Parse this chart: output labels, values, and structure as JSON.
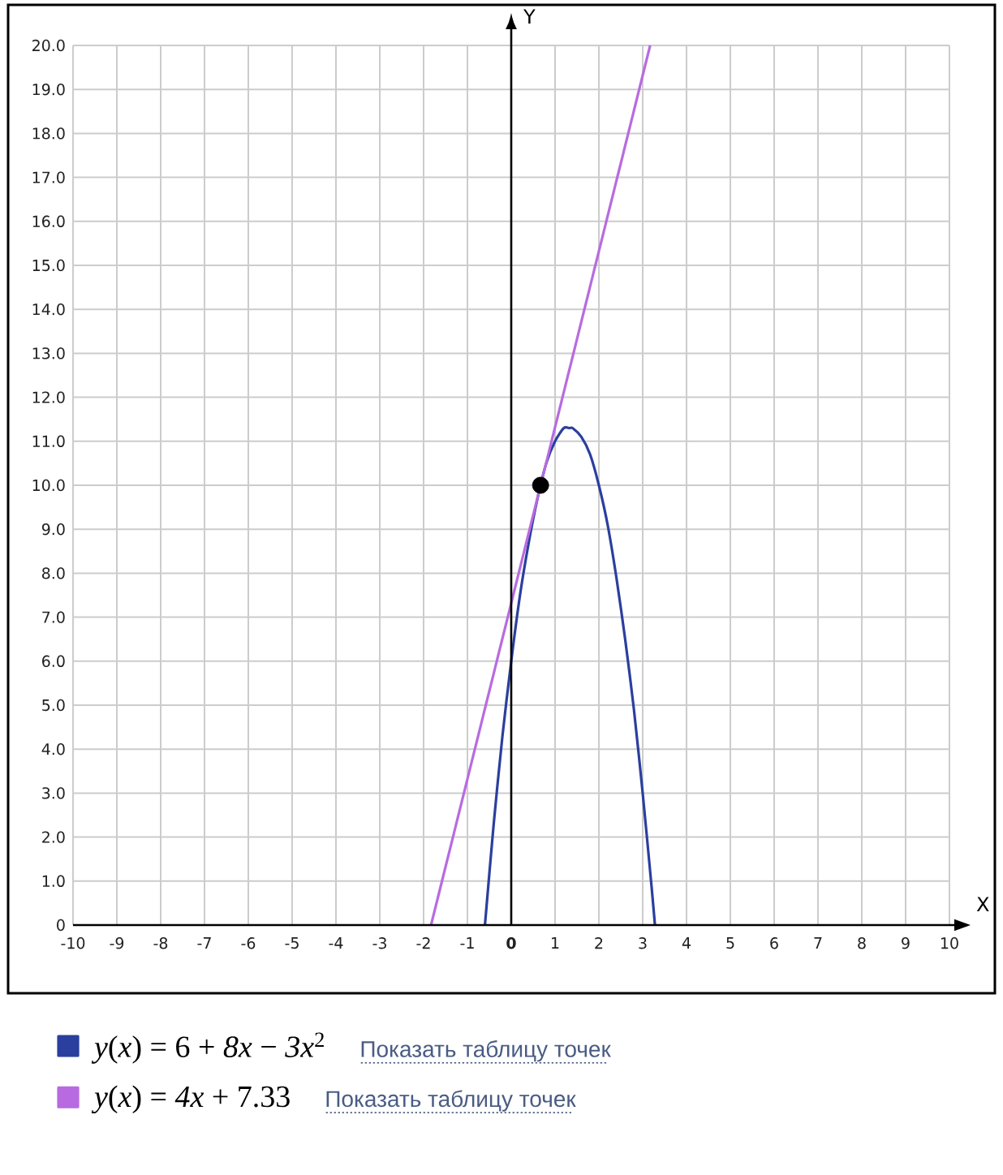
{
  "chart_data": {
    "type": "line",
    "xlabel": "X",
    "ylabel": "Y",
    "xlim": [
      -10,
      10
    ],
    "ylim": [
      0,
      20
    ],
    "xticks": [
      -10,
      -9,
      -8,
      -7,
      -6,
      -5,
      -4,
      -3,
      -2,
      -1,
      {
        "value": 0,
        "label": "**0**"
      },
      1,
      2,
      3,
      4,
      5,
      6,
      7,
      8,
      9,
      10
    ],
    "yticks": [
      0,
      {
        "value": 1,
        "label": "1.0"
      },
      {
        "value": 2,
        "label": "2.0"
      },
      {
        "value": 3,
        "label": "3.0"
      },
      {
        "value": 4,
        "label": "4.0"
      },
      {
        "value": 5,
        "label": "5.0"
      },
      {
        "value": 6,
        "label": "6.0"
      },
      {
        "value": 7,
        "label": "7.0"
      },
      {
        "value": 8,
        "label": "8.0"
      },
      {
        "value": 9,
        "label": "9.0"
      },
      {
        "value": 10,
        "label": "10.0"
      },
      {
        "value": 11,
        "label": "11.0"
      },
      {
        "value": 12,
        "label": "12.0"
      },
      {
        "value": 13,
        "label": "13.0"
      },
      {
        "value": 14,
        "label": "14.0"
      },
      {
        "value": 15,
        "label": "15.0"
      },
      {
        "value": 16,
        "label": "16.0"
      },
      {
        "value": 17,
        "label": "17.0"
      },
      {
        "value": 18,
        "label": "18.0"
      },
      {
        "value": 19,
        "label": "19.0"
      },
      {
        "value": 20,
        "label": "20.0"
      }
    ],
    "grid": true,
    "legend": "bottom left",
    "marker": "none",
    "series": [
      {
        "name": "*y*(*x*) = 6 + *8x* − *3x*$^{2}$",
        "color": "#2b3f9e",
        "x": [
          -0.6,
          -0.4,
          -0.2,
          0,
          0.2,
          0.4,
          0.6,
          0.8,
          1.0,
          1.2,
          1.33,
          1.4,
          1.6,
          1.8,
          2.0,
          2.2,
          2.4,
          2.6,
          2.8,
          3.0,
          3.2,
          3.28
        ],
        "values": [
          0,
          2.3,
          4.3,
          6,
          7.5,
          8.7,
          9.7,
          10.5,
          11,
          11.3,
          11.3,
          11.3,
          11.1,
          10.7,
          10,
          9.1,
          7.9,
          6.5,
          4.9,
          3,
          0.9,
          0
        ]
      },
      {
        "name": "*y*(*x*) = *4x* + 7.33",
        "color": "#b86be0",
        "x": [
          -1.83,
          3.17
        ],
        "values": [
          0,
          20
        ]
      },
      {
        "type": "scatter",
        "marker": "circle",
        "color": "#000000",
        "x": [
          0.67
        ],
        "values": [
          10
        ]
      }
    ],
    "annotations": [
      "Показать таблицу точек",
      "Показать таблицу точек"
    ]
  }
}
